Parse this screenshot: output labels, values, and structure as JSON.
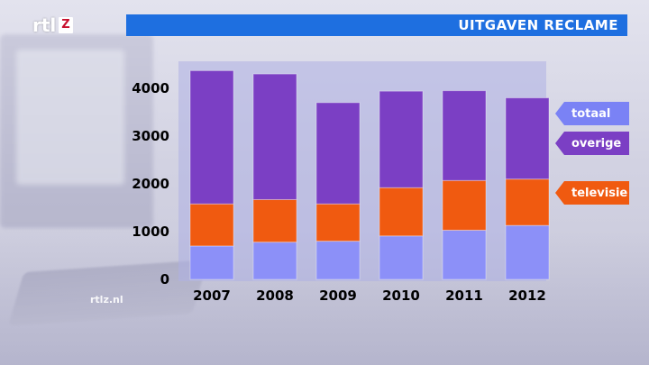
{
  "logo": {
    "brand": "rtl",
    "tag": "Z"
  },
  "header": {
    "title": "UITGAVEN RECLAME"
  },
  "watermark": "rtlz.nl",
  "legend": {
    "totaal": "totaal",
    "overige": "overige",
    "televisie": "televisie"
  },
  "colors": {
    "base": "#8c90f8",
    "televisie": "#f05a10",
    "overige": "#7b3fc4",
    "title_bar": "#1e6fe0"
  },
  "chart_data": {
    "type": "bar",
    "stacked": true,
    "categories": [
      "2007",
      "2008",
      "2009",
      "2010",
      "2011",
      "2012"
    ],
    "yticks": [
      "0",
      "1000",
      "2000",
      "3000",
      "4000"
    ],
    "ylim": [
      0,
      4400
    ],
    "series": [
      {
        "key": "base",
        "values": [
          700,
          780,
          800,
          910,
          1030,
          1130
        ]
      },
      {
        "key": "televisie",
        "name": "televisie",
        "values": [
          880,
          890,
          780,
          1010,
          1040,
          970
        ]
      },
      {
        "key": "overige",
        "name": "overige",
        "values": [
          2790,
          2630,
          2120,
          2020,
          1880,
          1700
        ]
      }
    ],
    "totals": [
      4370,
      4300,
      3700,
      3940,
      3950,
      3800
    ],
    "legend_position": "right",
    "grid": false
  }
}
